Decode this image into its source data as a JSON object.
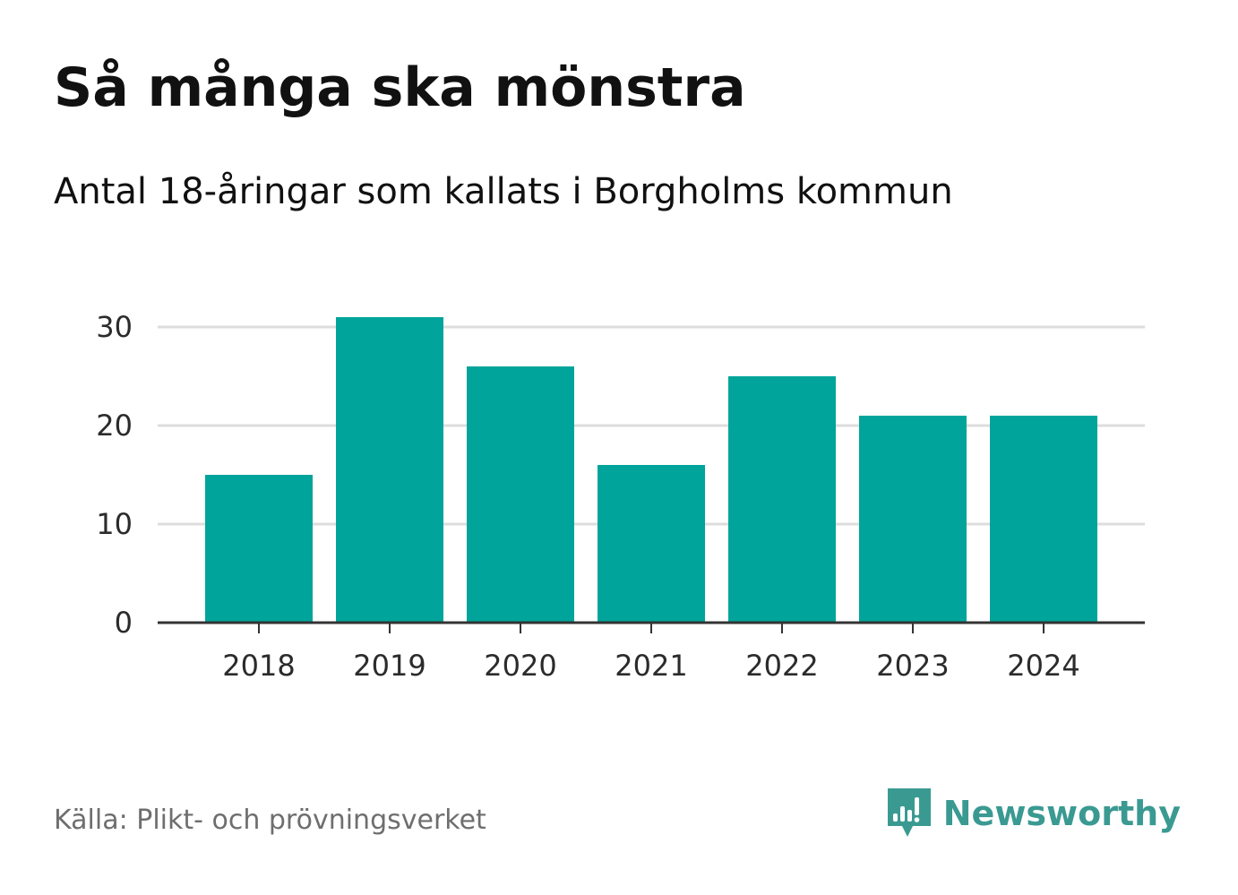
{
  "header": {
    "title": "Så många ska mönstra",
    "subtitle": "Antal 18-åringar som kallats i Borgholms kommun"
  },
  "footer": {
    "source": "Källa: Plikt- och prövningsverket",
    "brand": "Newsworthy",
    "brand_icon": "newsworthy-logo-icon"
  },
  "colors": {
    "bar": "#00A49A",
    "grid": "#dddddd",
    "axis": "#333333",
    "brand": "#3a9a92"
  },
  "chart_data": {
    "type": "bar",
    "categories": [
      "2018",
      "2019",
      "2020",
      "2021",
      "2022",
      "2023",
      "2024"
    ],
    "values": [
      15,
      31,
      26,
      16,
      25,
      21,
      21
    ],
    "title": "Så många ska mönstra",
    "subtitle": "Antal 18-åringar som kallats i Borgholms kommun",
    "xlabel": "",
    "ylabel": "",
    "ylim": [
      0,
      30
    ],
    "yticks": [
      0,
      10,
      20,
      30
    ],
    "grid": true,
    "legend": "none"
  }
}
